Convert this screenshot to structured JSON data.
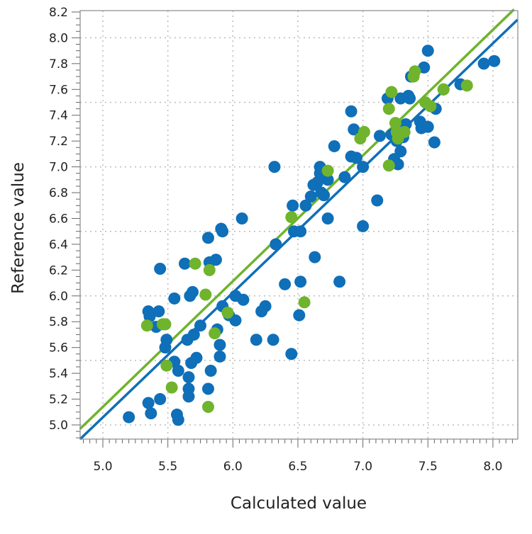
{
  "chart_data": {
    "type": "scatter",
    "title": "",
    "xlabel": "Calculated value",
    "ylabel": "Reference value",
    "xlim": [
      4.825,
      8.19
    ],
    "ylim": [
      4.89,
      8.22
    ],
    "xticks": [
      "5.0",
      "5.5",
      "6.0",
      "6.5",
      "7.0",
      "7.5",
      "8.0"
    ],
    "yticks": [
      "5.0",
      "5.2",
      "5.4",
      "5.6",
      "5.8",
      "6.0",
      "6.2",
      "6.4",
      "6.6",
      "6.8",
      "7.0",
      "7.2",
      "7.4",
      "7.6",
      "7.8",
      "8.0",
      "8.2"
    ],
    "grid": true,
    "legend": "none",
    "colors": {
      "blue": "#0f6fb8",
      "green": "#6fb42c"
    },
    "series": [
      {
        "color": "#0f6fb8",
        "points": [
          [
            5.2,
            5.06
          ],
          [
            5.35,
            5.17
          ],
          [
            5.37,
            5.09
          ],
          [
            5.44,
            5.2
          ],
          [
            5.35,
            5.88
          ],
          [
            5.36,
            5.84
          ],
          [
            5.43,
            5.88
          ],
          [
            5.41,
            5.76
          ],
          [
            5.44,
            6.21
          ],
          [
            5.48,
            5.6
          ],
          [
            5.49,
            5.66
          ],
          [
            5.55,
            5.98
          ],
          [
            5.55,
            5.49
          ],
          [
            5.57,
            5.08
          ],
          [
            5.58,
            5.04
          ],
          [
            5.58,
            5.42
          ],
          [
            5.63,
            6.25
          ],
          [
            5.65,
            5.66
          ],
          [
            5.66,
            5.28
          ],
          [
            5.66,
            5.22
          ],
          [
            5.66,
            5.37
          ],
          [
            5.67,
            6.0
          ],
          [
            5.68,
            5.48
          ],
          [
            5.69,
            6.03
          ],
          [
            5.7,
            5.7
          ],
          [
            5.72,
            5.52
          ],
          [
            5.75,
            5.77
          ],
          [
            5.81,
            5.28
          ],
          [
            5.81,
            6.45
          ],
          [
            5.82,
            6.26
          ],
          [
            5.83,
            5.42
          ],
          [
            5.87,
            6.28
          ],
          [
            5.88,
            5.74
          ],
          [
            5.9,
            5.62
          ],
          [
            5.9,
            5.53
          ],
          [
            5.91,
            6.52
          ],
          [
            5.92,
            6.5
          ],
          [
            5.92,
            5.92
          ],
          [
            5.97,
            5.85
          ],
          [
            6.02,
            6.0
          ],
          [
            6.02,
            5.81
          ],
          [
            6.07,
            6.6
          ],
          [
            6.08,
            5.97
          ],
          [
            6.18,
            5.66
          ],
          [
            6.22,
            5.88
          ],
          [
            6.25,
            5.92
          ],
          [
            6.31,
            5.66
          ],
          [
            6.32,
            7.0
          ],
          [
            6.33,
            6.4
          ],
          [
            6.4,
            6.09
          ],
          [
            6.45,
            5.55
          ],
          [
            6.46,
            6.7
          ],
          [
            6.47,
            6.5
          ],
          [
            6.51,
            5.85
          ],
          [
            6.52,
            6.11
          ],
          [
            6.52,
            6.5
          ],
          [
            6.56,
            6.7
          ],
          [
            6.6,
            6.77
          ],
          [
            6.62,
            6.86
          ],
          [
            6.63,
            6.3
          ],
          [
            6.65,
            6.88
          ],
          [
            6.67,
            6.95
          ],
          [
            6.67,
            7.0
          ],
          [
            6.68,
            6.8
          ],
          [
            6.7,
            6.78
          ],
          [
            6.73,
            6.6
          ],
          [
            6.73,
            6.9
          ],
          [
            6.78,
            7.16
          ],
          [
            6.82,
            6.11
          ],
          [
            6.86,
            6.92
          ],
          [
            6.91,
            7.43
          ],
          [
            6.91,
            7.08
          ],
          [
            6.93,
            7.29
          ],
          [
            6.95,
            7.07
          ],
          [
            7.0,
            7.0
          ],
          [
            7.0,
            6.54
          ],
          [
            7.11,
            6.74
          ],
          [
            7.13,
            7.24
          ],
          [
            7.19,
            7.53
          ],
          [
            7.22,
            7.25
          ],
          [
            7.24,
            7.06
          ],
          [
            7.26,
            7.2
          ],
          [
            7.27,
            7.02
          ],
          [
            7.29,
            7.12
          ],
          [
            7.29,
            7.53
          ],
          [
            7.31,
            7.23
          ],
          [
            7.33,
            7.33
          ],
          [
            7.35,
            7.55
          ],
          [
            7.36,
            7.53
          ],
          [
            7.37,
            7.7
          ],
          [
            7.44,
            7.35
          ],
          [
            7.45,
            7.3
          ],
          [
            7.47,
            7.77
          ],
          [
            7.5,
            7.31
          ],
          [
            7.5,
            7.9
          ],
          [
            7.55,
            7.19
          ],
          [
            7.56,
            7.45
          ],
          [
            7.62,
            7.6
          ],
          [
            7.75,
            7.64
          ],
          [
            7.93,
            7.8
          ],
          [
            8.01,
            7.82
          ]
        ],
        "fit": {
          "slope": 0.966,
          "intercept": 0.229
        }
      },
      {
        "color": "#6fb42c",
        "points": [
          [
            5.34,
            5.77
          ],
          [
            5.46,
            5.78
          ],
          [
            5.48,
            5.78
          ],
          [
            5.49,
            5.46
          ],
          [
            5.53,
            5.29
          ],
          [
            5.71,
            6.25
          ],
          [
            5.79,
            6.01
          ],
          [
            5.81,
            5.14
          ],
          [
            5.82,
            6.2
          ],
          [
            5.86,
            5.71
          ],
          [
            5.96,
            5.87
          ],
          [
            6.45,
            6.61
          ],
          [
            6.55,
            5.95
          ],
          [
            6.73,
            6.97
          ],
          [
            6.98,
            7.22
          ],
          [
            7.01,
            7.27
          ],
          [
            7.2,
            7.45
          ],
          [
            7.2,
            7.01
          ],
          [
            7.22,
            7.58
          ],
          [
            7.25,
            7.34
          ],
          [
            7.26,
            7.27
          ],
          [
            7.27,
            7.22
          ],
          [
            7.32,
            7.27
          ],
          [
            7.39,
            7.7
          ],
          [
            7.4,
            7.74
          ],
          [
            7.48,
            7.5
          ],
          [
            7.52,
            7.47
          ],
          [
            7.62,
            7.6
          ],
          [
            7.8,
            7.63
          ]
        ],
        "fit": {
          "slope": 0.974,
          "intercept": 0.27
        }
      }
    ]
  }
}
